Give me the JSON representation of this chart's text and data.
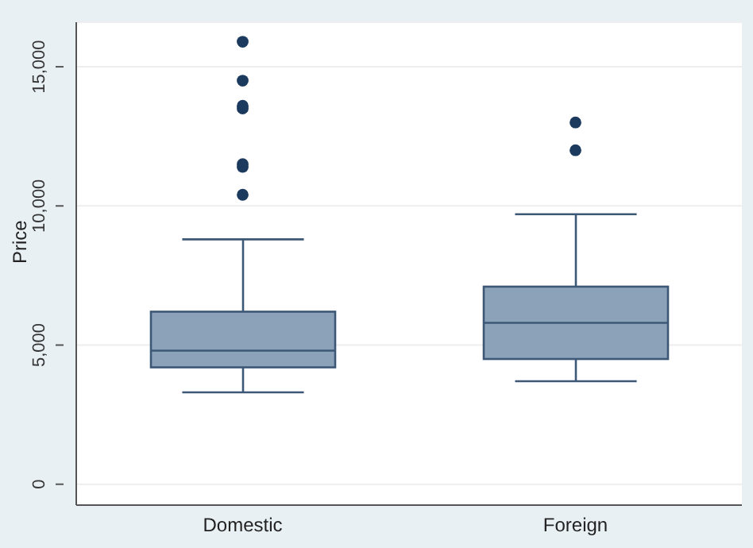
{
  "chart_data": {
    "type": "box",
    "ylabel": "Price",
    "categories": [
      "Domestic",
      "Foreign"
    ],
    "ylim": [
      -750,
      16600
    ],
    "yticks": [
      {
        "value": 0,
        "label": "0"
      },
      {
        "value": 5000,
        "label": "5,000"
      },
      {
        "value": 10000,
        "label": "10,000"
      },
      {
        "value": 15000,
        "label": "15,000"
      }
    ],
    "grid": "y",
    "color": "#8ca2b9",
    "boxes": [
      {
        "low": 3300,
        "q1": 4200,
        "median": 4800,
        "q3": 6200,
        "high": 8800,
        "outliers": [
          10400,
          11400,
          11500,
          13500,
          13600,
          14500,
          15900
        ]
      },
      {
        "low": 3700,
        "q1": 4500,
        "median": 5800,
        "q3": 7100,
        "high": 9700,
        "outliers": [
          12000,
          13000
        ]
      }
    ]
  }
}
